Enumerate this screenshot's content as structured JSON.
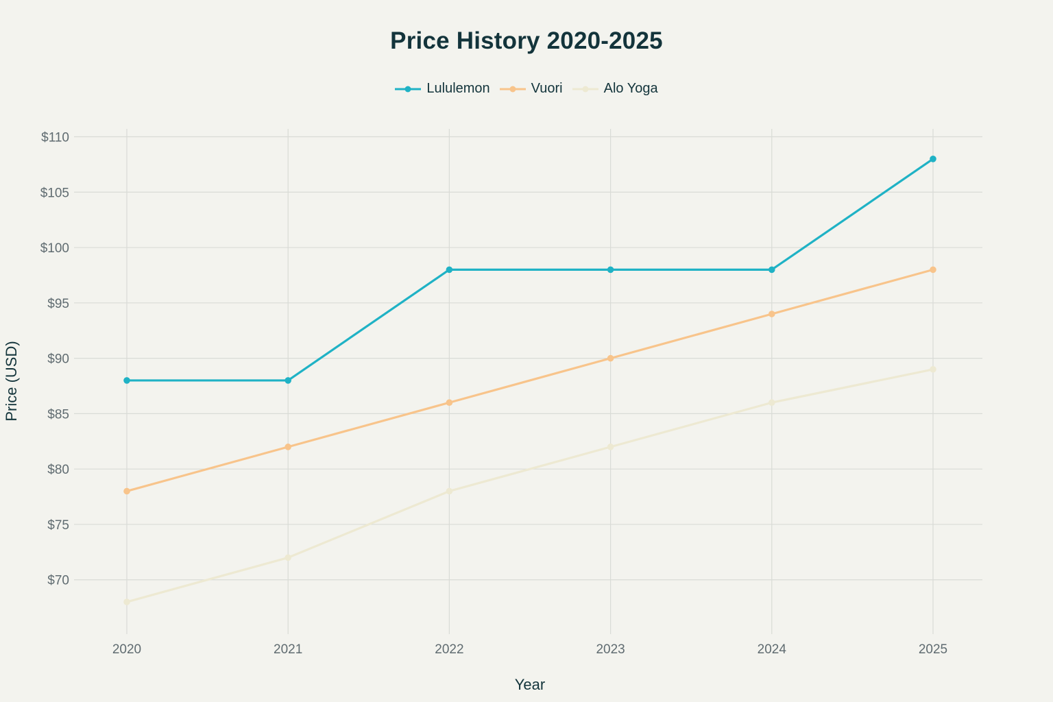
{
  "chart_data": {
    "type": "line",
    "title": "Price History 2020-2025",
    "xlabel": "Year",
    "ylabel": "Price (USD)",
    "categories": [
      "2020",
      "2021",
      "2022",
      "2023",
      "2024",
      "2025"
    ],
    "ylim": [
      65,
      110
    ],
    "yticks": [
      70,
      75,
      80,
      85,
      90,
      95,
      100,
      105,
      110
    ],
    "ytick_labels": [
      "$70",
      "$75",
      "$80",
      "$85",
      "$90",
      "$95",
      "$100",
      "$105",
      "$110"
    ],
    "grid": true,
    "legend_position": "top-center",
    "series": [
      {
        "name": "Lululemon",
        "color": "#1fb2c5",
        "values": [
          88,
          88,
          98,
          98,
          98,
          108
        ]
      },
      {
        "name": "Vuori",
        "color": "#f8c48b",
        "values": [
          78,
          82,
          86,
          90,
          94,
          98
        ]
      },
      {
        "name": "Alo Yoga",
        "color": "#ede9d2",
        "values": [
          68,
          72,
          78,
          82,
          86,
          89
        ]
      }
    ]
  }
}
